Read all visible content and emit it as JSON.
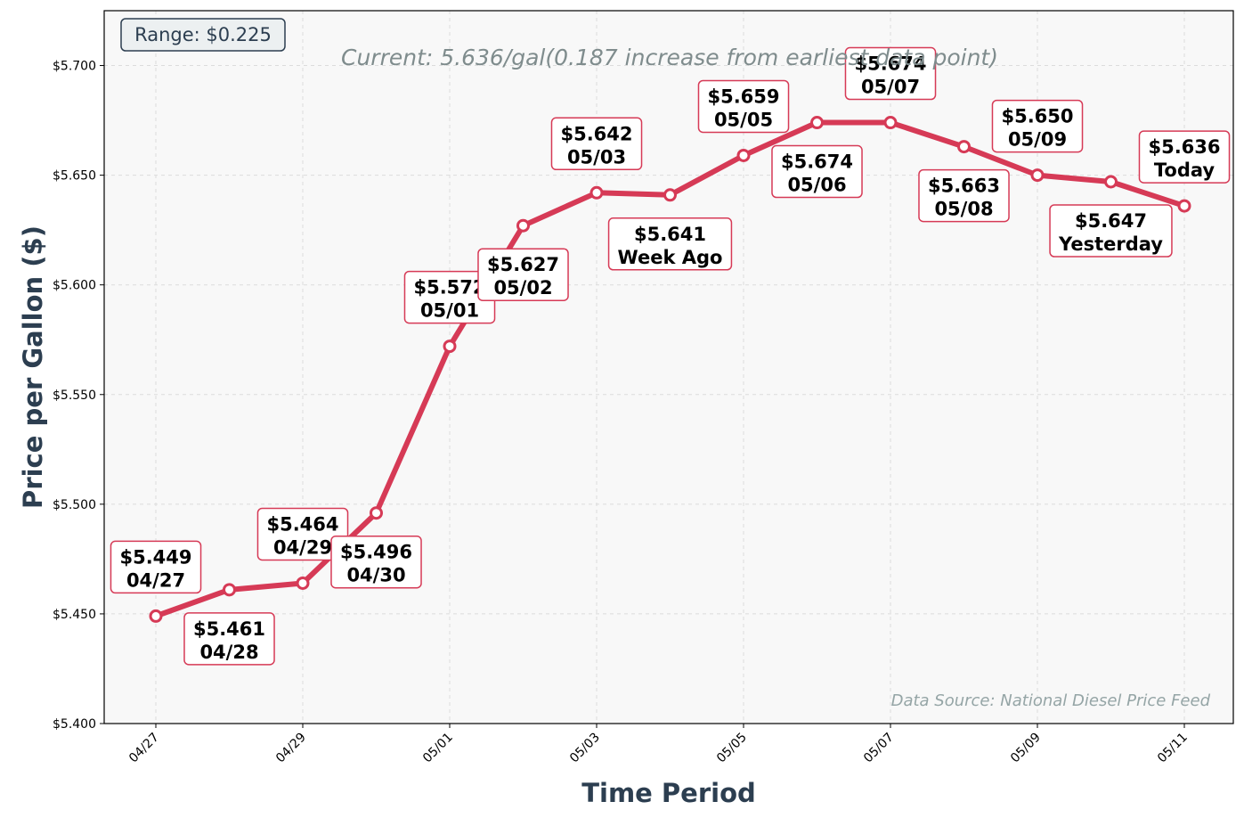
{
  "chart_data": {
    "type": "line",
    "subtitle": "Current: 5.636/gal(0.187 increase from earliest data point)",
    "range_box": "Range: $0.225",
    "source_note": "Data Source: National Diesel Price Feed",
    "xlabel": "Time Period",
    "ylabel": "Price per Gallon ($)",
    "ylim": [
      5.4,
      5.725
    ],
    "grid": true,
    "line_color": "#d63a56",
    "x": [
      "04/27",
      "04/28",
      "04/29",
      "04/30",
      "05/01",
      "05/02",
      "05/03",
      "Week Ago",
      "05/05",
      "05/06",
      "05/07",
      "05/08",
      "05/09",
      "Yesterday",
      "Today"
    ],
    "xtick_labels": [
      "04/27",
      "04/29",
      "05/01",
      "05/03",
      "05/05",
      "05/07",
      "05/09",
      "05/11"
    ],
    "ytick_labels": [
      "$5.400",
      "$5.450",
      "$5.500",
      "$5.550",
      "$5.600",
      "$5.650",
      "$5.700"
    ],
    "ytick_values": [
      5.4,
      5.45,
      5.5,
      5.55,
      5.6,
      5.65,
      5.7
    ],
    "series": [
      {
        "values": [
          5.449,
          5.461,
          5.464,
          5.496,
          5.572,
          5.627,
          5.642,
          5.641,
          5.659,
          5.674,
          5.674,
          5.663,
          5.65,
          5.647,
          5.636
        ]
      }
    ],
    "annotations": [
      {
        "price": "$5.449",
        "label": "04/27",
        "pos": "above"
      },
      {
        "price": "$5.461",
        "label": "04/28",
        "pos": "below"
      },
      {
        "price": "$5.464",
        "label": "04/29",
        "pos": "above"
      },
      {
        "price": "$5.496",
        "label": "04/30",
        "pos": "below"
      },
      {
        "price": "$5.572",
        "label": "05/01",
        "pos": "above"
      },
      {
        "price": "$5.627",
        "label": "05/02",
        "pos": "below"
      },
      {
        "price": "$5.642",
        "label": "05/03",
        "pos": "above"
      },
      {
        "price": "$5.641",
        "label": "Week Ago",
        "pos": "below"
      },
      {
        "price": "$5.659",
        "label": "05/05",
        "pos": "above"
      },
      {
        "price": "$5.674",
        "label": "05/06",
        "pos": "below"
      },
      {
        "price": "$5.674",
        "label": "05/07",
        "pos": "above"
      },
      {
        "price": "$5.663",
        "label": "05/08",
        "pos": "below"
      },
      {
        "price": "$5.650",
        "label": "05/09",
        "pos": "above"
      },
      {
        "price": "$5.647",
        "label": "Yesterday",
        "pos": "below"
      },
      {
        "price": "$5.636",
        "label": "Today",
        "pos": "above"
      }
    ]
  }
}
